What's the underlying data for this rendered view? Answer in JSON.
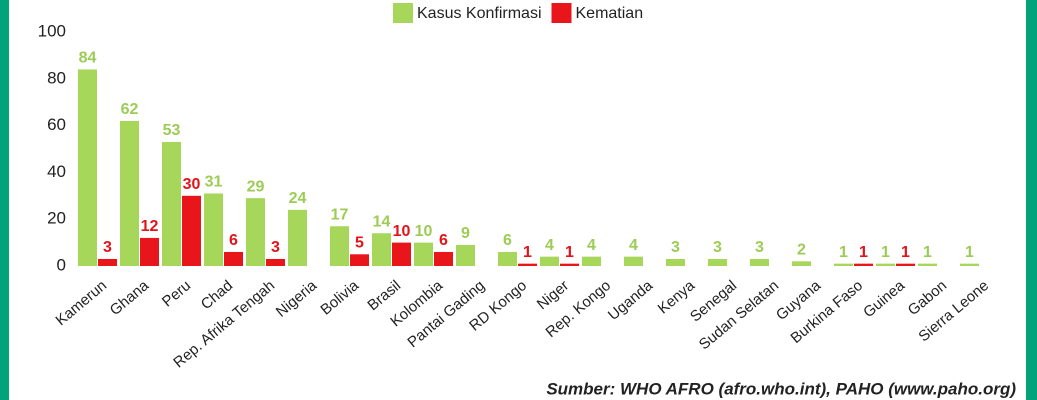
{
  "chart_data": {
    "type": "bar",
    "categories": [
      "Kamerun",
      "Ghana",
      "Peru",
      "Chad",
      "Rep. Afrika Tengah",
      "Nigeria",
      "Bolivia",
      "Brasil",
      "Kolombia",
      "Pantai Gading",
      "RD Kongo",
      "Niger",
      "Rep. Kongo",
      "Uganda",
      "Kenya",
      "Senegal",
      "Sudan Selatan",
      "Guyana",
      "Burkina Faso",
      "Guinea",
      "Gabon",
      "Sierra Leone"
    ],
    "series": [
      {
        "name": "Kasus Konfirmasi",
        "color": "#a6d75b",
        "label_color": "#9ccc55",
        "values": [
          84,
          62,
          53,
          31,
          29,
          24,
          17,
          14,
          10,
          9,
          6,
          4,
          4,
          4,
          3,
          3,
          3,
          2,
          1,
          1,
          1,
          1
        ]
      },
      {
        "name": "Kematian",
        "color": "#e8161b",
        "label_color": "#e0141a",
        "values": [
          3,
          12,
          30,
          6,
          3,
          null,
          5,
          10,
          6,
          null,
          1,
          1,
          null,
          null,
          null,
          null,
          null,
          null,
          1,
          1,
          null,
          null
        ]
      }
    ],
    "ylim": [
      0,
      100
    ],
    "yticks": [
      0,
      20,
      40,
      60,
      80,
      100
    ],
    "grid": false,
    "legend": "top",
    "source": "Sumber: WHO AFRO (afro.who.int), PAHO (www.paho.org)"
  }
}
